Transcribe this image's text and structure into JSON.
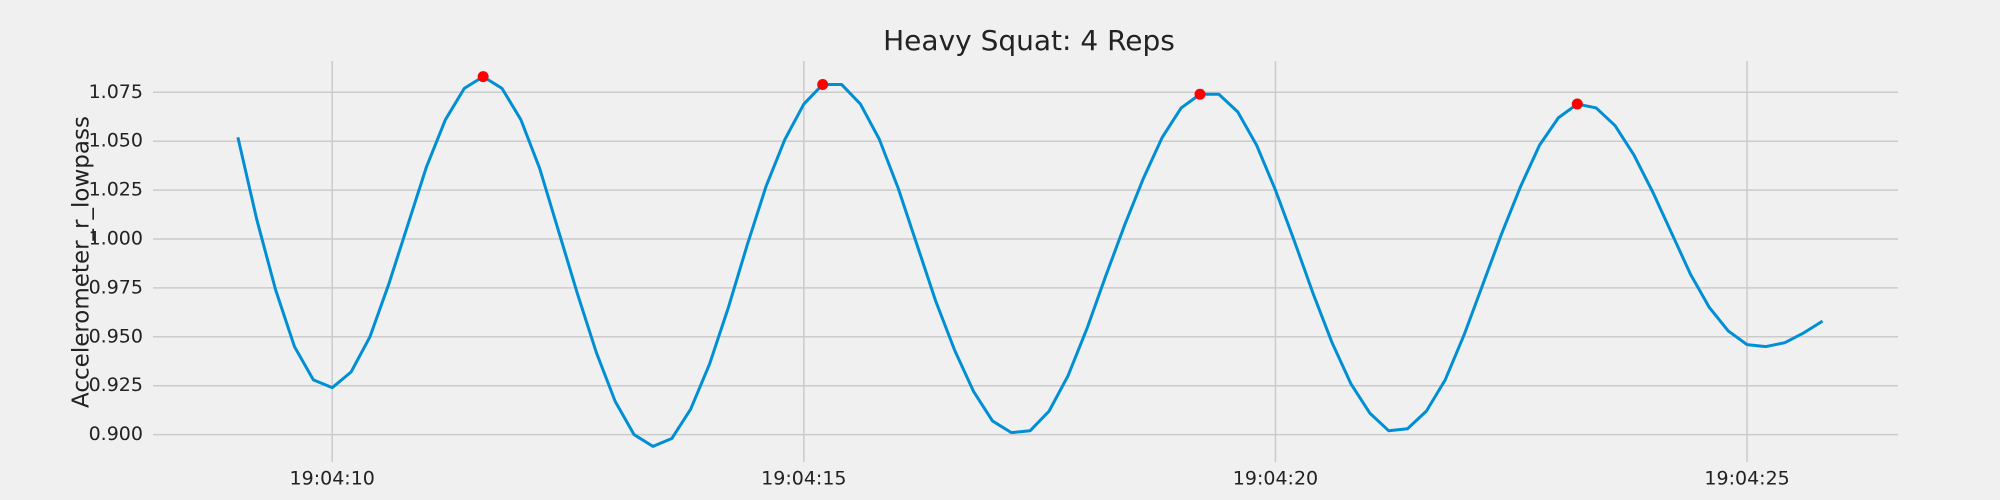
{
  "chart_data": {
    "type": "line",
    "title": "Heavy Squat: 4 Reps",
    "ylabel": "Accelerometer_r_lowpass",
    "x": [
      9.0,
      9.2,
      9.4,
      9.6,
      9.8,
      10.0,
      10.2,
      10.4,
      10.6,
      10.8,
      11.0,
      11.2,
      11.4,
      11.6,
      11.8,
      12.0,
      12.2,
      12.4,
      12.6,
      12.8,
      13.0,
      13.2,
      13.4,
      13.6,
      13.8,
      14.0,
      14.2,
      14.4,
      14.6,
      14.8,
      15.0,
      15.2,
      15.4,
      15.6,
      15.8,
      16.0,
      16.2,
      16.4,
      16.6,
      16.8,
      17.0,
      17.2,
      17.4,
      17.6,
      17.8,
      18.0,
      18.2,
      18.4,
      18.6,
      18.8,
      19.0,
      19.2,
      19.4,
      19.6,
      19.8,
      20.0,
      20.2,
      20.4,
      20.6,
      20.8,
      21.0,
      21.2,
      21.4,
      21.6,
      21.8,
      22.0,
      22.2,
      22.4,
      22.6,
      22.8,
      23.0,
      23.2,
      23.4,
      23.6,
      23.8,
      24.0,
      24.2,
      24.4,
      24.6,
      24.8,
      25.0,
      25.2,
      25.4,
      25.6,
      25.8
    ],
    "series": [
      {
        "color": "#008fd5",
        "values": [
          1.052,
          1.01,
          0.974,
          0.945,
          0.928,
          0.924,
          0.932,
          0.95,
          0.977,
          1.007,
          1.037,
          1.061,
          1.077,
          1.083,
          1.077,
          1.061,
          1.036,
          1.004,
          0.972,
          0.942,
          0.917,
          0.9,
          0.894,
          0.898,
          0.913,
          0.936,
          0.965,
          0.997,
          1.027,
          1.051,
          1.069,
          1.079,
          1.079,
          1.069,
          1.051,
          1.026,
          0.997,
          0.968,
          0.943,
          0.922,
          0.907,
          0.901,
          0.902,
          0.912,
          0.93,
          0.954,
          0.981,
          1.007,
          1.031,
          1.052,
          1.067,
          1.074,
          1.074,
          1.065,
          1.048,
          1.025,
          0.999,
          0.972,
          0.947,
          0.926,
          0.911,
          0.902,
          0.903,
          0.912,
          0.928,
          0.951,
          0.977,
          1.003,
          1.027,
          1.048,
          1.062,
          1.069,
          1.067,
          1.058,
          1.043,
          1.024,
          1.003,
          0.982,
          0.965,
          0.953,
          0.946,
          0.945,
          0.947,
          0.952,
          0.958
        ]
      },
      {
        "type": "scatter",
        "color": "#ff0000",
        "x": [
          11.6,
          15.2,
          19.2,
          23.2
        ],
        "values": [
          1.083,
          1.079,
          1.074,
          1.069
        ]
      }
    ],
    "xlim": [
      8.1,
      26.6
    ],
    "xticks": [
      {
        "value": 10,
        "label": "19:04:10"
      },
      {
        "value": 15,
        "label": "19:04:15"
      },
      {
        "value": 20,
        "label": "19:04:20"
      },
      {
        "value": 25,
        "label": "19:04:25"
      }
    ],
    "ylim": [
      0.886,
      1.091
    ],
    "yticks": [
      {
        "value": 0.9,
        "label": "0.900"
      },
      {
        "value": 0.925,
        "label": "0.925"
      },
      {
        "value": 0.95,
        "label": "0.950"
      },
      {
        "value": 0.975,
        "label": "0.975"
      },
      {
        "value": 1.0,
        "label": "1.000"
      },
      {
        "value": 1.025,
        "label": "1.025"
      },
      {
        "value": 1.05,
        "label": "1.050"
      },
      {
        "value": 1.075,
        "label": "1.075"
      }
    ],
    "grid": true
  }
}
